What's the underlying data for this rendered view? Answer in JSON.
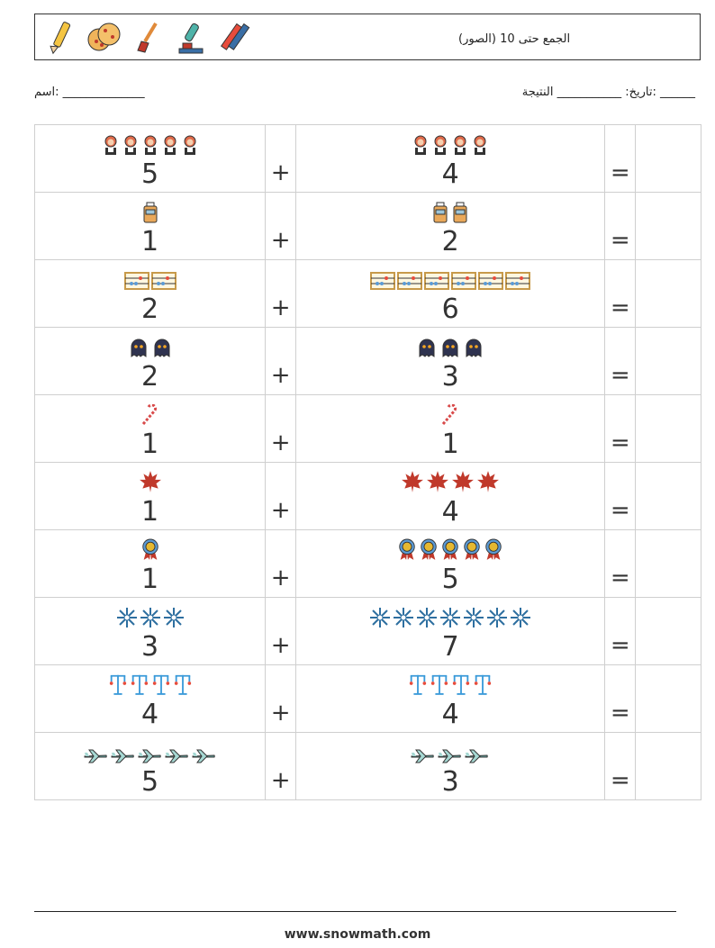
{
  "header": {
    "title": "الجمع حتى 10 (الصور)",
    "icons": [
      "pencil-icon",
      "cookie-icon",
      "paintbrush-icon",
      "microscope-icon",
      "crayons-icon"
    ]
  },
  "meta": {
    "name_label": "اسم: ______________",
    "date_result_label": "______ :تاريخ: ___________ النتيجة"
  },
  "rows": [
    {
      "a": "5",
      "b": "4",
      "op": "+",
      "eq": "=",
      "icon": "woman-icon",
      "color": "#e06a4a"
    },
    {
      "a": "1",
      "b": "2",
      "op": "+",
      "eq": "=",
      "icon": "suitcase-icon",
      "color": "#e9a85a"
    },
    {
      "a": "2",
      "b": "6",
      "op": "+",
      "eq": "=",
      "icon": "abacus-icon",
      "color": "#c79a4a"
    },
    {
      "a": "2",
      "b": "3",
      "op": "+",
      "eq": "=",
      "icon": "ghost-icon",
      "color": "#2f3350"
    },
    {
      "a": "1",
      "b": "1",
      "op": "+",
      "eq": "=",
      "icon": "candy-cane-icon",
      "color": "#d84a4a"
    },
    {
      "a": "1",
      "b": "4",
      "op": "+",
      "eq": "=",
      "icon": "maple-leaf-icon",
      "color": "#c0392b"
    },
    {
      "a": "1",
      "b": "5",
      "op": "+",
      "eq": "=",
      "icon": "medal-icon",
      "color": "#e5b830"
    },
    {
      "a": "3",
      "b": "7",
      "op": "+",
      "eq": "=",
      "icon": "snowflake-icon",
      "color": "#2e6fa0"
    },
    {
      "a": "4",
      "b": "4",
      "op": "+",
      "eq": "=",
      "icon": "streetlamp-icon",
      "color": "#3a9ad9"
    },
    {
      "a": "5",
      "b": "3",
      "op": "+",
      "eq": "=",
      "icon": "airplane-icon",
      "color": "#6fb7b0"
    }
  ],
  "footer": {
    "url": "www.snowmath.com"
  }
}
